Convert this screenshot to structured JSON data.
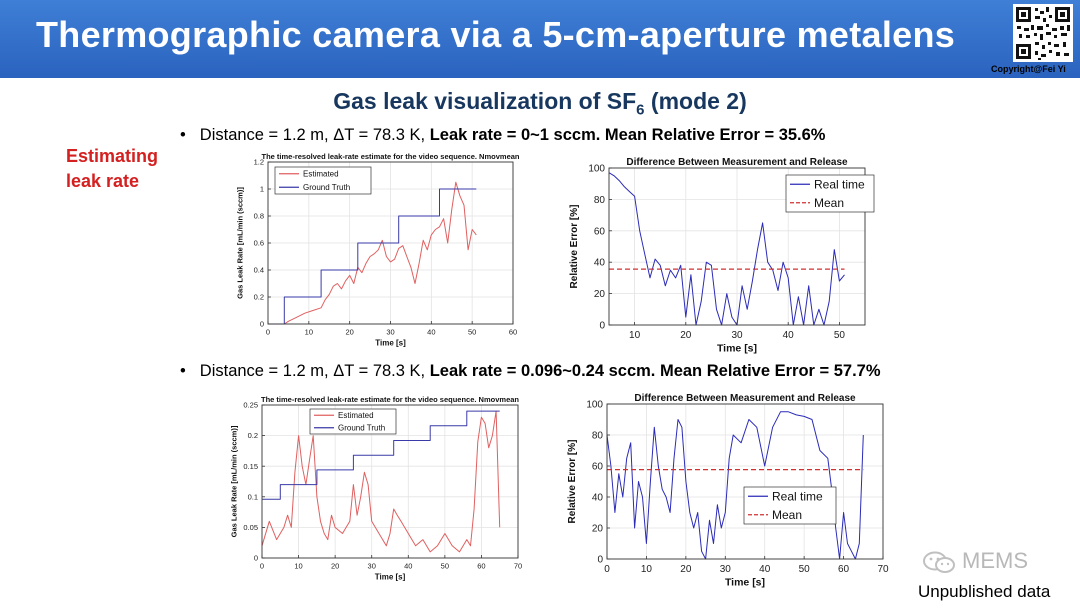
{
  "slide": {
    "title": "Thermographic camera via a 5-cm-aperture metalens",
    "copyright": "Copyright@Fei  Yi",
    "subtitle_main": "Gas leak visualization of SF",
    "subtitle_sub": "6",
    "subtitle_tail": " (mode 2)",
    "side_label_line1": "Estimating",
    "side_label_line2": "leak rate",
    "bullet1_plain": "Distance = 1.2 m, ΔT = 78.3 K, ",
    "bullet1_bold": "Leak rate = 0~1 sccm. Mean Relative Error = 35.6%",
    "bullet2_plain": "Distance = 1.2 m, ΔT = 78.3 K, ",
    "bullet2_bold": "Leak rate = 0.096~0.24 sccm. Mean Relative Error = 57.7%",
    "watermark": "MEMS",
    "footer": "Unpublished data",
    "icon_qr": "qr-code-icon",
    "icon_watermark": "wechat-icon",
    "colors": {
      "banner": "#2f6dcc",
      "side_label": "#d42020",
      "subtitle": "#17375e"
    }
  },
  "chart_data": [
    {
      "type": "line",
      "title": "The time-resolved leak-rate estimate for the video sequence. Nmovmean",
      "xlabel": "Time [s]",
      "ylabel": "Gas Leak Rate [mL/min (sccm)]",
      "xlim": [
        0,
        60
      ],
      "ylim": [
        0,
        1.2
      ],
      "xticks": [
        0,
        10,
        20,
        30,
        40,
        50,
        60
      ],
      "yticks": [
        0,
        0.2,
        0.4,
        0.6,
        0.8,
        1,
        1.2
      ],
      "grid": true,
      "legend": "top-left",
      "series": [
        {
          "name": "Estimated",
          "color": "#e06060",
          "x": [
            0,
            4,
            5,
            7,
            9,
            11,
            13,
            14,
            15,
            16,
            17,
            18,
            19,
            20,
            21,
            22,
            23,
            24,
            25,
            26,
            27,
            28,
            29,
            30,
            31,
            32,
            33,
            34,
            35,
            36,
            37,
            38,
            39,
            40,
            41,
            42,
            43,
            44,
            45,
            46,
            47,
            48,
            49,
            50,
            51
          ],
          "y": [
            0,
            0,
            0.02,
            0.05,
            0.08,
            0.1,
            0.12,
            0.18,
            0.22,
            0.28,
            0.3,
            0.26,
            0.32,
            0.36,
            0.3,
            0.42,
            0.38,
            0.45,
            0.5,
            0.52,
            0.55,
            0.62,
            0.5,
            0.46,
            0.48,
            0.56,
            0.58,
            0.5,
            0.42,
            0.3,
            0.45,
            0.62,
            0.55,
            0.66,
            0.7,
            0.72,
            0.78,
            0.6,
            0.85,
            1.05,
            0.95,
            0.88,
            0.55,
            0.7,
            0.66
          ]
        },
        {
          "name": "Ground Truth",
          "color": "#3a3aa8",
          "x": [
            0,
            4,
            4,
            13,
            13,
            22,
            22,
            32,
            32,
            42,
            42,
            51
          ],
          "y": [
            0,
            0,
            0.2,
            0.2,
            0.4,
            0.4,
            0.6,
            0.6,
            0.8,
            0.8,
            1.0,
            1.0
          ]
        }
      ]
    },
    {
      "type": "line",
      "title": "Difference Between Measurement and Release",
      "xlabel": "Time [s]",
      "ylabel": "Relative Error [%]",
      "xlim": [
        5,
        55
      ],
      "ylim": [
        0,
        100
      ],
      "xticks": [
        10,
        20,
        30,
        40,
        50
      ],
      "yticks": [
        0,
        20,
        40,
        60,
        80,
        100
      ],
      "grid": true,
      "legend": "top-right",
      "series": [
        {
          "name": "Real time",
          "color": "#2b2bb8",
          "x": [
            5,
            6,
            7,
            8,
            9,
            10,
            11,
            12,
            13,
            14,
            15,
            16,
            17,
            18,
            19,
            20,
            21,
            22,
            23,
            24,
            25,
            26,
            27,
            28,
            29,
            30,
            31,
            32,
            33,
            34,
            35,
            36,
            37,
            38,
            39,
            40,
            41,
            42,
            43,
            44,
            45,
            46,
            47,
            48,
            49,
            50,
            51
          ],
          "y": [
            97,
            95,
            92,
            88,
            85,
            82,
            60,
            45,
            30,
            42,
            38,
            25,
            35,
            30,
            38,
            5,
            32,
            0,
            15,
            40,
            38,
            10,
            0,
            20,
            5,
            0,
            25,
            10,
            28,
            48,
            65,
            40,
            35,
            22,
            40,
            30,
            0,
            18,
            0,
            25,
            0,
            10,
            0,
            15,
            48,
            28,
            32
          ]
        },
        {
          "name": "Mean",
          "color": "#d03030",
          "dashed": true,
          "x": [
            5,
            51
          ],
          "y": [
            35.6,
            35.6
          ]
        }
      ]
    },
    {
      "type": "line",
      "title": "The time-resolved leak-rate estimate for the video sequence. Nmovmean",
      "xlabel": "Time [s]",
      "ylabel": "Gas Leak Rate [mL/min (sccm)]",
      "xlim": [
        0,
        70
      ],
      "ylim": [
        0,
        0.25
      ],
      "xticks": [
        0,
        10,
        20,
        30,
        40,
        50,
        60,
        70
      ],
      "yticks": [
        0,
        0.05,
        0.1,
        0.15,
        0.2,
        0.25
      ],
      "grid": true,
      "legend": "top-center",
      "series": [
        {
          "name": "Estimated",
          "color": "#e06060",
          "x": [
            0,
            2,
            4,
            6,
            7,
            8,
            9,
            10,
            11,
            12,
            13,
            14,
            15,
            16,
            17,
            18,
            19,
            20,
            22,
            24,
            25,
            26,
            27,
            28,
            29,
            30,
            32,
            34,
            35,
            36,
            37,
            38,
            40,
            42,
            44,
            46,
            48,
            50,
            52,
            54,
            56,
            57,
            58,
            59,
            60,
            61,
            62,
            63,
            64,
            65
          ],
          "y": [
            0.02,
            0.06,
            0.03,
            0.05,
            0.07,
            0.05,
            0.14,
            0.2,
            0.15,
            0.12,
            0.16,
            0.2,
            0.1,
            0.06,
            0.04,
            0.03,
            0.07,
            0.05,
            0.04,
            0.06,
            0.12,
            0.07,
            0.1,
            0.14,
            0.12,
            0.06,
            0.04,
            0.02,
            0.04,
            0.08,
            0.07,
            0.06,
            0.04,
            0.02,
            0.03,
            0.01,
            0.02,
            0.04,
            0.02,
            0.01,
            0.03,
            0.02,
            0.08,
            0.19,
            0.23,
            0.22,
            0.18,
            0.2,
            0.24,
            0.05
          ]
        },
        {
          "name": "Ground Truth",
          "color": "#3a3aa8",
          "x": [
            0,
            5,
            5,
            15,
            15,
            25,
            25,
            36,
            36,
            46,
            46,
            56,
            56,
            65
          ],
          "y": [
            0.096,
            0.096,
            0.12,
            0.12,
            0.144,
            0.144,
            0.168,
            0.168,
            0.192,
            0.192,
            0.216,
            0.216,
            0.24,
            0.24
          ]
        }
      ]
    },
    {
      "type": "line",
      "title": "Difference Between Measurement and Release",
      "xlabel": "Time [s]",
      "ylabel": "Relative Error [%]",
      "xlim": [
        0,
        70
      ],
      "ylim": [
        0,
        100
      ],
      "xticks": [
        0,
        10,
        20,
        30,
        40,
        50,
        60,
        70
      ],
      "yticks": [
        0,
        20,
        40,
        60,
        80,
        100
      ],
      "grid": true,
      "legend": "bottom-right",
      "series": [
        {
          "name": "Real time",
          "color": "#2b2bb8",
          "x": [
            0,
            1,
            2,
            3,
            4,
            5,
            6,
            7,
            8,
            9,
            10,
            11,
            12,
            13,
            14,
            15,
            16,
            17,
            18,
            19,
            20,
            21,
            22,
            23,
            24,
            25,
            26,
            27,
            28,
            29,
            30,
            31,
            32,
            34,
            36,
            38,
            40,
            42,
            44,
            46,
            48,
            50,
            52,
            54,
            56,
            57,
            58,
            59,
            60,
            61,
            62,
            63,
            64,
            65
          ],
          "y": [
            80,
            60,
            30,
            55,
            40,
            65,
            75,
            20,
            50,
            40,
            10,
            50,
            85,
            60,
            45,
            40,
            30,
            65,
            90,
            85,
            50,
            30,
            20,
            30,
            5,
            0,
            25,
            10,
            35,
            20,
            30,
            65,
            80,
            75,
            90,
            85,
            60,
            85,
            95,
            95,
            93,
            92,
            90,
            70,
            65,
            45,
            20,
            0,
            30,
            10,
            5,
            0,
            10,
            80
          ]
        },
        {
          "name": "Mean",
          "color": "#d03030",
          "dashed": true,
          "x": [
            0,
            65
          ],
          "y": [
            57.7,
            57.7
          ]
        }
      ]
    }
  ]
}
